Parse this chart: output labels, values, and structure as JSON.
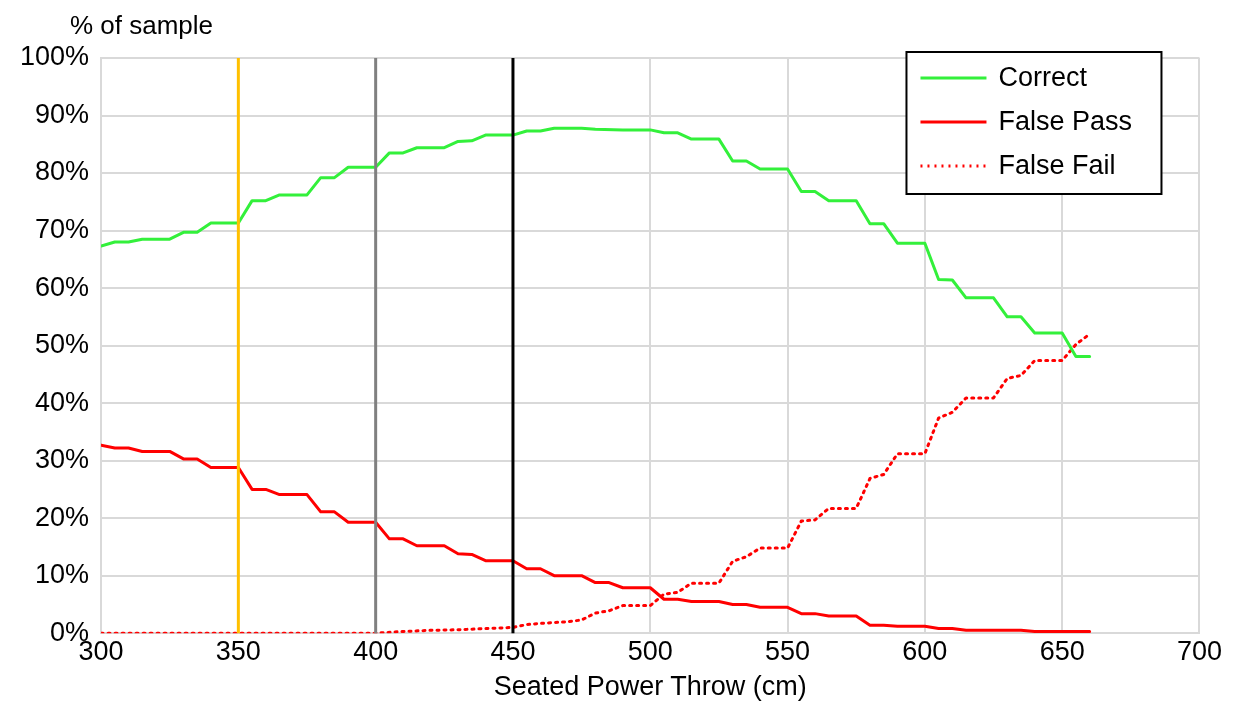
{
  "chart_data": {
    "type": "line",
    "xlabel": "Seated Power Throw (cm)",
    "ylabel": "% of sample",
    "xlim": [
      300,
      700
    ],
    "xticks": [
      300,
      350,
      400,
      450,
      500,
      550,
      600,
      650,
      700
    ],
    "ylim": [
      0,
      100
    ],
    "yticks": [
      {
        "value": 0,
        "label": "0%"
      },
      {
        "value": 10,
        "label": "10%"
      },
      {
        "value": 20,
        "label": "20%"
      },
      {
        "value": 30,
        "label": "30%"
      },
      {
        "value": 40,
        "label": "40%"
      },
      {
        "value": 50,
        "label": "50%"
      },
      {
        "value": 60,
        "label": "60%"
      },
      {
        "value": 70,
        "label": "70%"
      },
      {
        "value": 80,
        "label": "80%"
      },
      {
        "value": 90,
        "label": "90%"
      },
      {
        "value": 100,
        "label": "100%"
      }
    ],
    "grid": true,
    "legend": "top right",
    "marker": "none",
    "series": [
      {
        "name": "Correct",
        "color": "#33f03b",
        "line_style": "solid",
        "x": [
          300,
          305,
          310,
          315,
          325,
          330,
          335,
          340,
          350,
          355,
          360,
          365,
          375,
          380,
          385,
          390,
          400,
          405,
          410,
          415,
          425,
          430,
          435,
          440,
          450,
          455,
          460,
          465,
          475,
          480,
          490,
          500,
          505,
          510,
          515,
          525,
          530,
          535,
          540,
          550,
          555,
          560,
          565,
          575,
          580,
          585,
          590,
          600,
          605,
          610,
          615,
          625,
          630,
          635,
          640,
          650,
          655,
          660
        ],
        "values": [
          67.3,
          68,
          68,
          68.5,
          68.5,
          69.7,
          69.7,
          71.3,
          71.3,
          75.2,
          75.2,
          76.2,
          76.2,
          79.2,
          79.2,
          81,
          81,
          83.5,
          83.5,
          84.4,
          84.4,
          85.5,
          85.6,
          86.6,
          86.6,
          87.3,
          87.3,
          87.8,
          87.8,
          87.6,
          87.5,
          87.5,
          87,
          87,
          85.9,
          85.9,
          82.1,
          82.1,
          80.7,
          80.7,
          76.8,
          76.8,
          75.2,
          75.2,
          71.2,
          71.2,
          67.8,
          67.8,
          61.5,
          61.4,
          58.3,
          58.3,
          55,
          55,
          52.2,
          52.2,
          48.1,
          48.1
        ]
      },
      {
        "name": "False Pass",
        "color": "#ff0000",
        "line_style": "solid",
        "x": [
          300,
          305,
          310,
          315,
          325,
          330,
          335,
          340,
          350,
          355,
          360,
          365,
          375,
          380,
          385,
          390,
          400,
          405,
          410,
          415,
          425,
          430,
          435,
          440,
          450,
          455,
          460,
          465,
          475,
          480,
          485,
          490,
          500,
          505,
          510,
          515,
          525,
          530,
          535,
          540,
          550,
          555,
          560,
          565,
          575,
          580,
          585,
          590,
          600,
          605,
          610,
          615,
          635,
          640,
          660
        ],
        "values": [
          32.7,
          32.2,
          32.2,
          31.6,
          31.6,
          30.3,
          30.3,
          28.8,
          28.8,
          25,
          25,
          24.1,
          24.1,
          21.1,
          21.1,
          19.3,
          19.3,
          16.4,
          16.4,
          15.2,
          15.2,
          13.8,
          13.7,
          12.6,
          12.6,
          11.2,
          11.2,
          10,
          10,
          8.8,
          8.8,
          7.9,
          7.9,
          5.9,
          5.9,
          5.5,
          5.5,
          5,
          5,
          4.5,
          4.5,
          3.4,
          3.4,
          3,
          3,
          1.4,
          1.4,
          1.2,
          1.2,
          0.8,
          0.8,
          0.5,
          0.5,
          0.3,
          0.3
        ]
      },
      {
        "name": "False Fail",
        "color": "#ff0000",
        "line_style": "dotted",
        "x": [
          300,
          400,
          410,
          420,
          430,
          440,
          450,
          455,
          460,
          470,
          475,
          480,
          485,
          490,
          500,
          505,
          510,
          515,
          525,
          530,
          535,
          540,
          550,
          555,
          560,
          565,
          575,
          580,
          585,
          590,
          600,
          605,
          610,
          615,
          625,
          630,
          635,
          640,
          650,
          655,
          660
        ],
        "values": [
          0,
          0,
          0.3,
          0.5,
          0.6,
          0.8,
          1,
          1.5,
          1.7,
          2,
          2.3,
          3.5,
          3.9,
          4.8,
          4.8,
          6.8,
          7.1,
          8.7,
          8.7,
          12.5,
          13.3,
          14.8,
          14.8,
          19.5,
          19.7,
          21.7,
          21.7,
          26.9,
          27.6,
          31.2,
          31.2,
          37.4,
          38.4,
          40.9,
          40.9,
          44.3,
          44.8,
          47.4,
          47.4,
          50.2,
          52
        ]
      }
    ],
    "ref_lines": [
      {
        "axis": "x",
        "value": 350,
        "color": "#ffc000"
      },
      {
        "axis": "x",
        "value": 400,
        "color": "#808080"
      },
      {
        "axis": "x",
        "value": 450,
        "color": "#000000"
      }
    ]
  }
}
